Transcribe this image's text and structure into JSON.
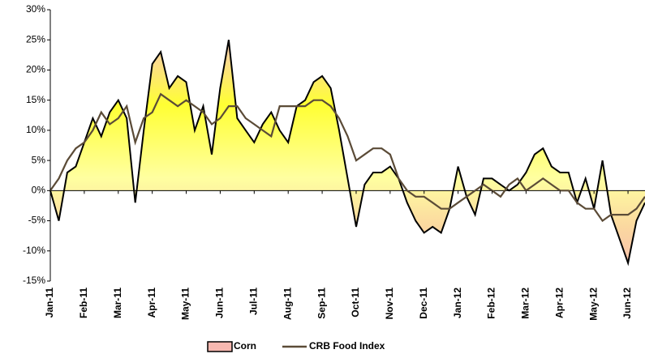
{
  "chart_data": {
    "type": "line",
    "categories": [
      "Jan-11",
      null,
      null,
      null,
      "Feb-11",
      null,
      null,
      null,
      "Mar-11",
      null,
      null,
      null,
      "Apr-11",
      null,
      null,
      null,
      "May-11",
      null,
      null,
      null,
      "Jun-11",
      null,
      null,
      null,
      "Jul-11",
      null,
      null,
      null,
      "Aug-11",
      null,
      null,
      null,
      "Sep-11",
      null,
      null,
      null,
      "Oct-11",
      null,
      null,
      null,
      "Nov-11",
      null,
      null,
      null,
      "Dec-11",
      null,
      null,
      null,
      "Jan-12",
      null,
      null,
      null,
      "Feb-12",
      null,
      null,
      null,
      "Mar-12",
      null,
      null,
      null,
      "Apr-12",
      null,
      null,
      null,
      "May-12",
      null,
      null,
      null,
      "Jun-12",
      null,
      null
    ],
    "series": [
      {
        "name": "Corn",
        "color": "#000000",
        "fill": "#ffff33",
        "area": true,
        "values": [
          0,
          -5,
          3,
          4,
          8,
          12,
          9,
          13,
          15,
          12,
          -2,
          10,
          21,
          23,
          17,
          19,
          18,
          10,
          14,
          6,
          17,
          25,
          12,
          10,
          8,
          11,
          13,
          10,
          8,
          14,
          15,
          18,
          19,
          17,
          10,
          2,
          -6,
          1,
          3,
          3,
          4,
          2,
          -2,
          -5,
          -7,
          -6,
          -7,
          -3,
          4,
          -1,
          -4,
          2,
          2,
          1,
          0,
          1,
          3,
          6,
          7,
          4,
          3,
          3,
          -2,
          2,
          -3,
          5,
          -4,
          -8,
          -12,
          -5,
          -2
        ]
      },
      {
        "name": "CRB Food Index",
        "color": "#5b4b37",
        "values": [
          0,
          2,
          5,
          7,
          8,
          10,
          13,
          11,
          12,
          14,
          8,
          12,
          13,
          16,
          15,
          14,
          15,
          14,
          13,
          11,
          12,
          14,
          14,
          12,
          11,
          10,
          9,
          14,
          14,
          14,
          14,
          15,
          15,
          14,
          12,
          9,
          5,
          6,
          7,
          7,
          6,
          2,
          0,
          -1,
          -1,
          -2,
          -3,
          -3,
          -2,
          -1,
          0,
          1,
          0,
          -1,
          1,
          2,
          0,
          1,
          2,
          1,
          0,
          0,
          -2,
          -3,
          -3,
          -5,
          -4,
          -4,
          -4,
          -3,
          -1
        ]
      }
    ],
    "ylim": [
      -15,
      30
    ],
    "yticks": [
      {
        "value": -15,
        "label": "-15%"
      },
      {
        "value": -10,
        "label": "-10%"
      },
      {
        "value": -5,
        "label": "-5%"
      },
      {
        "value": 0,
        "label": "0%"
      },
      {
        "value": 5,
        "label": "5%"
      },
      {
        "value": 10,
        "label": "10%"
      },
      {
        "value": 15,
        "label": "15%"
      },
      {
        "value": 20,
        "label": "20%"
      },
      {
        "value": 25,
        "label": "25%"
      },
      {
        "value": 30,
        "label": "30%"
      }
    ],
    "grid": false,
    "legend": "bottom"
  }
}
